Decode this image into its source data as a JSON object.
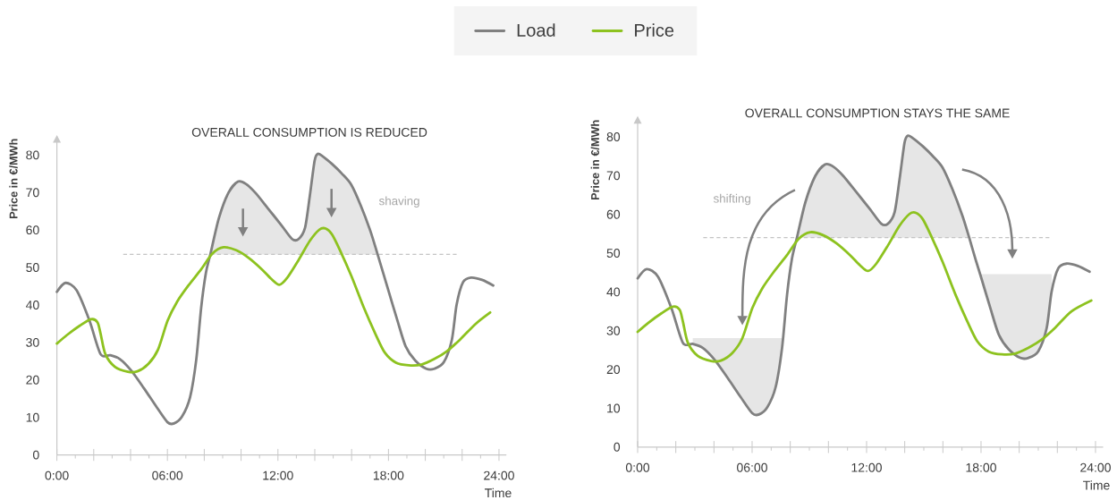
{
  "chart_data": [
    {
      "type": "line",
      "title": "OVERALL CONSUMPTION IS REDUCED",
      "xlabel": "Time",
      "ylabel": "Price in €/MWh",
      "legend": "top",
      "xlim": [
        0,
        24.4
      ],
      "ylim": [
        0,
        85
      ],
      "xticks": [
        {
          "value": 0,
          "label": "0:00"
        },
        {
          "value": 1,
          "label": null
        },
        {
          "value": 2,
          "label": null
        },
        {
          "value": 3,
          "label": null
        },
        {
          "value": 4,
          "label": null
        },
        {
          "value": 5,
          "label": null
        },
        {
          "value": 6,
          "label": "06:00"
        },
        {
          "value": 7,
          "label": null
        },
        {
          "value": 8,
          "label": null
        },
        {
          "value": 9,
          "label": null
        },
        {
          "value": 10,
          "label": null
        },
        {
          "value": 11,
          "label": null
        },
        {
          "value": 12,
          "label": "12:00"
        },
        {
          "value": 13,
          "label": null
        },
        {
          "value": 14,
          "label": null
        },
        {
          "value": 15,
          "label": null
        },
        {
          "value": 16,
          "label": null
        },
        {
          "value": 17,
          "label": null
        },
        {
          "value": 18,
          "label": "18:00"
        },
        {
          "value": 19,
          "label": null
        },
        {
          "value": 20,
          "label": null
        },
        {
          "value": 21,
          "label": null
        },
        {
          "value": 22,
          "label": null
        },
        {
          "value": 23,
          "label": null
        },
        {
          "value": 24,
          "label": "24:00"
        }
      ],
      "yticks": [
        0,
        10,
        20,
        30,
        40,
        50,
        60,
        70,
        80
      ],
      "series": [
        {
          "color": "#c4c4c4",
          "line_style": "dashed",
          "x": [
            3.6,
            21.7
          ],
          "values": [
            53.5,
            53.5
          ]
        },
        {
          "name": "Load",
          "color": "#808080",
          "x": [
            0,
            0.47,
            1.07,
            1.77,
            2.37,
            2.89,
            3.41,
            4.02,
            4.71,
            5.41,
            6.01,
            6.36,
            6.79,
            7.23,
            7.57,
            7.83,
            8.09,
            8.33,
            8.79,
            9.31,
            9.83,
            10.26,
            10.78,
            11.47,
            12.17,
            12.77,
            13.12,
            13.47,
            13.73,
            13.99,
            14.16,
            14.42,
            14.94,
            15.46,
            15.98,
            16.5,
            17.02,
            17.41,
            17.97,
            18.49,
            18.93,
            19.45,
            20.05,
            20.49,
            21.0,
            21.44,
            21.7,
            22.05,
            22.48,
            23.08,
            23.69
          ],
          "values": [
            43.5,
            45.9,
            43.9,
            35.8,
            26.9,
            26.6,
            25.6,
            22.6,
            17.9,
            12.8,
            8.7,
            8.4,
            10.2,
            15.4,
            25.6,
            39.2,
            48.6,
            53.5,
            63.1,
            69.9,
            72.9,
            72.3,
            69.9,
            65.7,
            61.4,
            57.6,
            57.6,
            60.6,
            69.1,
            78.5,
            80.3,
            79.7,
            77.6,
            75.1,
            72.1,
            66.5,
            59.7,
            53.5,
            44.3,
            35.8,
            29.0,
            25.2,
            23.0,
            23.0,
            24.7,
            30.7,
            40.1,
            46.1,
            47.3,
            46.7,
            45.2
          ],
          "lower": [
            null,
            null,
            null,
            null,
            null,
            null,
            null,
            null,
            null,
            null,
            null,
            null,
            null,
            null,
            null,
            null,
            null,
            53.5,
            53.5,
            53.5,
            53.5,
            53.5,
            53.5,
            53.5,
            53.5,
            53.5,
            53.5,
            53.5,
            53.5,
            53.5,
            53.5,
            53.5,
            53.5,
            53.5,
            53.5,
            53.5,
            53.5,
            53.5,
            null,
            null,
            null,
            null,
            null,
            null,
            null,
            null,
            null,
            null,
            null,
            null,
            null
          ],
          "upper": [
            null,
            null,
            null,
            null,
            null,
            null,
            null,
            null,
            null,
            null,
            null,
            null,
            null,
            null,
            null,
            null,
            null,
            53.5,
            63.1,
            69.9,
            72.9,
            72.3,
            69.9,
            65.7,
            61.4,
            57.6,
            57.6,
            60.6,
            69.1,
            78.5,
            80.3,
            79.7,
            77.6,
            75.1,
            72.1,
            66.5,
            59.7,
            53.5,
            null,
            null,
            null,
            null,
            null,
            null,
            null,
            null,
            null,
            null,
            null,
            null,
            null
          ]
        },
        {
          "name": "Price",
          "color": "#8dc21f",
          "x": [
            0,
            0.55,
            1.25,
            1.85,
            2.2,
            2.37,
            2.63,
            3.15,
            3.85,
            4.37,
            4.97,
            5.49,
            6.01,
            6.53,
            7.14,
            7.83,
            8.44,
            9.05,
            9.74,
            10.43,
            11.13,
            11.65,
            12.08,
            12.51,
            13.12,
            13.73,
            14.25,
            14.59,
            14.94,
            15.37,
            15.98,
            16.67,
            17.28,
            17.8,
            18.41,
            19.1,
            19.79,
            20.49,
            21.18,
            21.87,
            22.74,
            23.52
          ],
          "values": [
            29.7,
            32.0,
            34.5,
            36.2,
            35.4,
            32.4,
            26.9,
            23.5,
            22.2,
            22.3,
            24.3,
            28.1,
            35.8,
            40.9,
            45.2,
            49.5,
            53.7,
            55.4,
            54.6,
            52.5,
            49.5,
            46.9,
            45.4,
            47.3,
            52.0,
            57.1,
            60.1,
            60.4,
            58.8,
            54.6,
            47.8,
            39.2,
            32.4,
            27.3,
            24.6,
            23.9,
            24.1,
            25.6,
            27.7,
            30.7,
            35.0,
            38.0
          ]
        }
      ],
      "annotations": [
        "shaving"
      ]
    },
    {
      "type": "line",
      "title": "OVERALL CONSUMPTION STAYS THE SAME",
      "xlabel": "Time",
      "ylabel": "Price in €/MWh",
      "xlim": [
        0,
        24.4
      ],
      "ylim": [
        0,
        85
      ],
      "xticks": [
        {
          "value": 0,
          "label": "0:00"
        },
        {
          "value": 1,
          "label": null
        },
        {
          "value": 2,
          "label": null
        },
        {
          "value": 3,
          "label": null
        },
        {
          "value": 4,
          "label": null
        },
        {
          "value": 5,
          "label": null
        },
        {
          "value": 6,
          "label": "06:00"
        },
        {
          "value": 7,
          "label": null
        },
        {
          "value": 8,
          "label": null
        },
        {
          "value": 9,
          "label": null
        },
        {
          "value": 10,
          "label": null
        },
        {
          "value": 11,
          "label": null
        },
        {
          "value": 12,
          "label": "12:00"
        },
        {
          "value": 13,
          "label": null
        },
        {
          "value": 14,
          "label": null
        },
        {
          "value": 15,
          "label": null
        },
        {
          "value": 16,
          "label": null
        },
        {
          "value": 17,
          "label": null
        },
        {
          "value": 18,
          "label": "18:00"
        },
        {
          "value": 19,
          "label": null
        },
        {
          "value": 20,
          "label": null
        },
        {
          "value": 21,
          "label": null
        },
        {
          "value": 22,
          "label": null
        },
        {
          "value": 23,
          "label": null
        },
        {
          "value": 24,
          "label": "24:00"
        }
      ],
      "yticks": [
        0,
        10,
        20,
        30,
        40,
        50,
        60,
        70,
        80
      ],
      "series": [
        {
          "color": "#c4c4c4",
          "line_style": "dashed",
          "x": [
            3.44,
            21.58
          ],
          "values": [
            54,
            54
          ]
        },
        {
          "color": "#808080",
          "x": [
            0,
            0.47,
            1.07,
            1.77,
            2.37,
            2.89,
            3.41,
            4.02,
            4.71,
            5.41,
            6.01,
            6.36,
            6.79,
            7.23,
            7.57,
            7.83,
            8.09,
            8.35,
            8.79,
            9.31,
            9.83,
            10.26,
            10.78,
            11.47,
            12.17,
            12.77,
            13.12,
            13.47,
            13.73,
            13.99,
            14.16,
            14.42,
            14.94,
            15.46,
            15.98,
            16.5,
            17.02,
            17.38,
            17.7,
            17.97,
            18.49,
            18.93,
            19.45,
            20.05,
            20.49,
            21.0,
            21.44,
            21.7,
            22.05,
            22.48,
            23.08,
            23.69
          ],
          "values": [
            43.5,
            45.9,
            43.9,
            35.8,
            26.9,
            26.6,
            25.6,
            22.6,
            17.9,
            12.8,
            8.7,
            8.4,
            10.2,
            15.4,
            25.6,
            39.2,
            48.6,
            54.0,
            63.1,
            69.9,
            72.9,
            72.3,
            69.9,
            65.7,
            61.4,
            57.6,
            57.6,
            60.6,
            69.1,
            78.5,
            80.3,
            79.7,
            77.6,
            75.1,
            72.1,
            66.5,
            59.7,
            54.0,
            48.6,
            44.3,
            35.8,
            29.0,
            25.2,
            23.0,
            23.0,
            24.7,
            30.7,
            40.1,
            46.1,
            47.3,
            46.7,
            45.2
          ],
          "lower": [
            null,
            null,
            null,
            null,
            null,
            26.6,
            25.6,
            22.6,
            17.9,
            12.8,
            8.7,
            8.4,
            10.2,
            15.4,
            25.6,
            null,
            null,
            54,
            54,
            54,
            54,
            54,
            54,
            54,
            54,
            54,
            54,
            54,
            54,
            54,
            54,
            54,
            54,
            54,
            54,
            54,
            54,
            54,
            null,
            44.3,
            35.8,
            29.0,
            25.2,
            23.0,
            23.0,
            24.7,
            30.7,
            40.1,
            null,
            null,
            null,
            null
          ],
          "upper": [
            null,
            null,
            null,
            null,
            null,
            28.1,
            28.1,
            28.1,
            28.1,
            28.1,
            28.1,
            28.1,
            28.1,
            28.1,
            28.1,
            null,
            null,
            54.0,
            63.1,
            69.9,
            72.9,
            72.3,
            69.9,
            65.7,
            61.4,
            57.6,
            57.6,
            60.6,
            69.1,
            78.5,
            80.3,
            79.7,
            77.6,
            75.1,
            72.1,
            66.5,
            59.7,
            54.0,
            null,
            44.6,
            44.6,
            44.6,
            44.6,
            44.6,
            44.6,
            44.6,
            44.6,
            44.6,
            null,
            null,
            null,
            null
          ]
        },
        {
          "color": "#8dc21f",
          "x": [
            0,
            0.55,
            1.25,
            1.85,
            2.2,
            2.37,
            2.63,
            3.15,
            3.85,
            4.37,
            4.97,
            5.49,
            6.01,
            6.53,
            7.14,
            7.83,
            8.44,
            9.05,
            9.74,
            10.43,
            11.13,
            11.65,
            12.08,
            12.51,
            13.12,
            13.73,
            14.25,
            14.59,
            14.94,
            15.37,
            15.98,
            16.67,
            17.28,
            17.8,
            18.41,
            19.1,
            19.79,
            20.49,
            21.18,
            21.87,
            22.74,
            23.78
          ],
          "values": [
            29.7,
            32.0,
            34.5,
            36.2,
            35.4,
            32.4,
            26.9,
            23.5,
            22.2,
            22.3,
            24.3,
            28.1,
            35.8,
            40.9,
            45.2,
            49.5,
            53.7,
            55.4,
            54.6,
            52.5,
            49.5,
            46.9,
            45.4,
            47.3,
            52.0,
            57.1,
            60.1,
            60.4,
            58.8,
            54.6,
            47.8,
            39.2,
            32.4,
            27.3,
            24.6,
            23.9,
            24.1,
            25.6,
            27.7,
            30.7,
            35.0,
            37.8
          ]
        }
      ],
      "annotations": [
        "shifting"
      ]
    }
  ]
}
